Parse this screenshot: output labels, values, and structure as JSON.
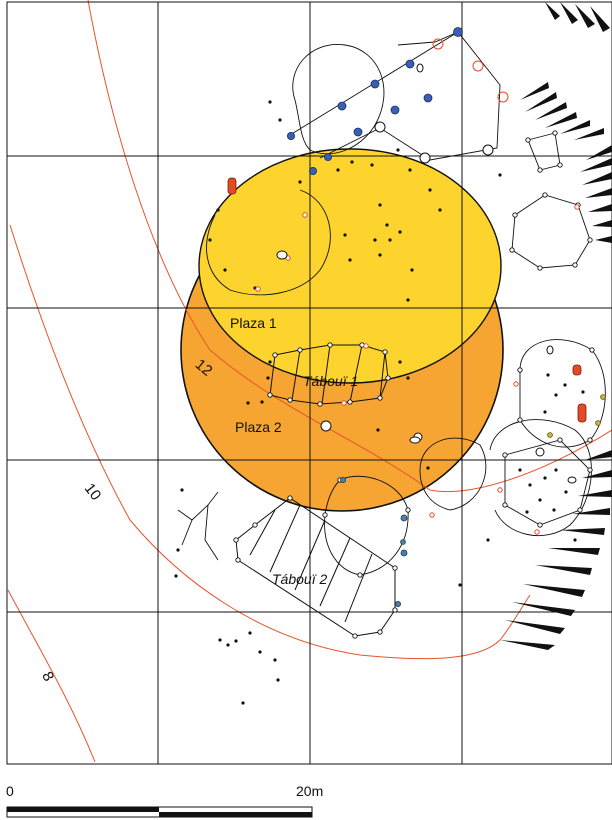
{
  "map": {
    "grid_spacing": "10m",
    "zones": [
      {
        "label": "Plaza 1",
        "color": "#fdd42e"
      },
      {
        "label": "Plaza 2",
        "color": "#f6a533"
      }
    ],
    "structures": [
      {
        "label": "Tábouï 1"
      },
      {
        "label": "Tábouï 2"
      }
    ],
    "contours": [
      {
        "label": "12",
        "color": "#e8542a"
      },
      {
        "label": "10",
        "color": "#e8542a"
      },
      {
        "label": "8",
        "color": "#e8542a"
      }
    ],
    "scale_bar": {
      "start_label": "0",
      "end_label": "20m"
    },
    "colors": {
      "posthole_blue": "#3a5fb0",
      "posthole_red": "#e24a2a",
      "hearth_red": "#e14b26",
      "grid": "#111111"
    }
  }
}
